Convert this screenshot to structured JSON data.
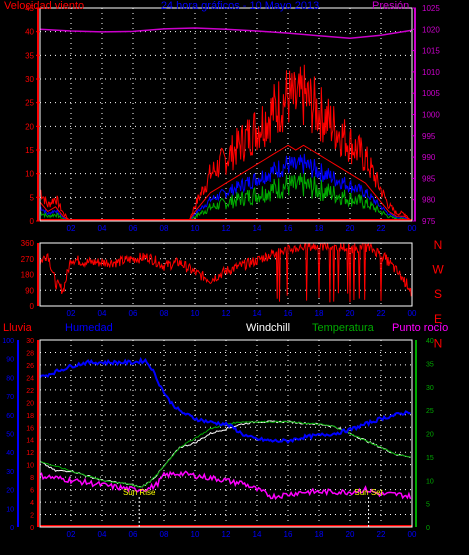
{
  "title": "24 hora gráficos - 10 Mayo 2013",
  "colors": {
    "background": "#000000",
    "grid": "#ffffff",
    "axis": "#ffffff",
    "wind": "#ff0000",
    "gust": "#ff0000",
    "pressure": "#cc00cc",
    "direction": "#ff0000",
    "rain": "#ff0000",
    "humidity": "#0000ff",
    "windchill": "#ffffff",
    "temperature": "#00aa00",
    "dewpoint": "#ff00ff",
    "marker": "#ffff00",
    "title": "#0000ff"
  },
  "chart_data": [
    {
      "type": "line",
      "title": "24 hora gráficos - 10 Mayo 2013",
      "xlabel": "",
      "x_ticks": [
        "02",
        "04",
        "06",
        "08",
        "10",
        "12",
        "14",
        "16",
        "18",
        "20",
        "22",
        "00"
      ],
      "y_left": {
        "label": "Velocidad viento",
        "range": [
          0,
          45
        ],
        "ticks": [
          0,
          5,
          10,
          15,
          20,
          25,
          30,
          35,
          40,
          45
        ]
      },
      "y_right": {
        "label": "Presión",
        "range": [
          975,
          1025
        ],
        "ticks": [
          975,
          980,
          985,
          990,
          995,
          1000,
          1005,
          1010,
          1015,
          1020,
          1025
        ]
      },
      "grid": true,
      "series": [
        {
          "name": "Velocidad viento",
          "axis": "left",
          "x": [
            0,
            0.5,
            1.0,
            1.5,
            2.0,
            3.0,
            4.0,
            5.0,
            6.0,
            7.0,
            8.0,
            9.0,
            9.6,
            10.0,
            10.5,
            11.0,
            11.5,
            12.0,
            12.5,
            13.0,
            13.5,
            14.0,
            14.5,
            15.0,
            15.5,
            16.0,
            16.5,
            17.0,
            17.5,
            18.0,
            18.5,
            19.0,
            19.5,
            20.0,
            20.5,
            21.0,
            21.5,
            22.0,
            22.5,
            23.0,
            23.5,
            24.0
          ],
          "y": [
            4,
            2,
            3,
            1,
            0,
            0,
            0,
            0,
            0,
            0,
            0,
            0,
            0,
            2,
            4,
            6,
            7,
            8,
            9,
            10,
            11,
            12,
            13,
            14,
            15,
            16,
            15,
            16,
            15,
            14,
            13,
            12,
            11,
            10,
            9,
            8,
            6,
            4,
            2,
            1,
            1,
            0
          ]
        },
        {
          "name": "Presión",
          "axis": "right",
          "x": [
            0,
            2,
            4,
            6,
            8,
            10,
            12,
            14,
            16,
            18,
            20,
            22,
            24
          ],
          "y": [
            1020,
            1019.6,
            1019.4,
            1019.5,
            1020.1,
            1020.3,
            1020.0,
            1019.6,
            1019.1,
            1018.5,
            1017.9,
            1018.6,
            1019.8
          ]
        }
      ]
    },
    {
      "type": "scatter",
      "title": "",
      "x_ticks": [
        "02",
        "04",
        "06",
        "08",
        "10",
        "12",
        "14",
        "16",
        "18",
        "20",
        "22",
        "00"
      ],
      "y_left": {
        "label": "",
        "range": [
          0,
          360
        ],
        "ticks": [
          0,
          90,
          180,
          270,
          360
        ]
      },
      "y_right": {
        "label": "",
        "labels": [
          "N",
          "W",
          "S",
          "E",
          "N"
        ]
      },
      "grid": true,
      "series": [
        {
          "name": "Dirección viento",
          "x": [
            0,
            0.5,
            1.0,
            1.5,
            2.0,
            3.0,
            4.0,
            5.0,
            6.0,
            7.0,
            8.0,
            9.0,
            10.0,
            11.0,
            12.0,
            13.0,
            14.0,
            15.0,
            16.0,
            17.0,
            18.0,
            19.0,
            20.0,
            21.0,
            22.0,
            23.0,
            24.0
          ],
          "y": [
            250,
            300,
            130,
            90,
            270,
            250,
            250,
            250,
            270,
            280,
            230,
            250,
            190,
            150,
            200,
            230,
            260,
            300,
            320,
            340,
            340,
            340,
            330,
            340,
            300,
            200,
            90
          ]
        }
      ]
    },
    {
      "type": "line",
      "title": "",
      "x_ticks": [
        "02",
        "04",
        "06",
        "08",
        "10",
        "12",
        "14",
        "16",
        "18",
        "20",
        "22",
        "00"
      ],
      "y_axes": [
        {
          "label": "Lluvia",
          "range": [
            0,
            100
          ],
          "ticks": [
            0,
            10,
            20,
            30,
            40,
            50,
            60,
            70,
            80,
            90,
            100
          ]
        },
        {
          "label": "Humedad",
          "range": [
            0,
            30
          ],
          "ticks": [
            0,
            2,
            4,
            6,
            8,
            10,
            12,
            14,
            16,
            18,
            20,
            22,
            24,
            26,
            28,
            30
          ]
        },
        {
          "label": "Temperatura",
          "range": [
            0,
            40
          ],
          "ticks": [
            0,
            5,
            10,
            15,
            20,
            25,
            30,
            35,
            40
          ]
        }
      ],
      "legend": [
        "Windchill",
        "Temperatura",
        "Punto rocío"
      ],
      "annotations": [
        {
          "text": "Sun Rise",
          "x": 6.4
        },
        {
          "text": "Sun Set",
          "x": 21.2
        }
      ],
      "grid": true,
      "series": [
        {
          "name": "Lluvia",
          "x": [
            0,
            24
          ],
          "y": [
            0,
            0
          ]
        },
        {
          "name": "Humedad",
          "x": [
            0,
            1,
            2,
            3,
            4,
            5,
            6,
            6.8,
            7.2,
            7.8,
            8.3,
            9.0,
            10.0,
            11.0,
            12.0,
            12.5,
            13.0,
            13.5,
            14.0,
            15.0,
            16.0,
            17.0,
            18.0,
            19.0,
            20.0,
            21.0,
            22.0,
            23.0,
            24.0
          ],
          "y": [
            80,
            83,
            86,
            88,
            88,
            88,
            88,
            89,
            85,
            75,
            68,
            62,
            58,
            56,
            55,
            53,
            50,
            48,
            47,
            46,
            46,
            48,
            49,
            50,
            52,
            55,
            58,
            60,
            62
          ]
        },
        {
          "name": "Temperatura",
          "x": [
            0,
            1,
            2,
            3,
            4,
            5,
            6,
            6.5,
            7.0,
            7.5,
            8.0,
            8.5,
            9.0,
            10.0,
            11.0,
            12.0,
            13.0,
            14.0,
            15.0,
            16.0,
            17.0,
            18.0,
            19.0,
            20.0,
            21.0,
            22.0,
            23.0,
            24.0
          ],
          "y": [
            14,
            13,
            12,
            11,
            10,
            9.5,
            9,
            8.5,
            9.5,
            11,
            13,
            15,
            17,
            19,
            21,
            22,
            22.5,
            22.5,
            22.5,
            22.5,
            22.2,
            22,
            21.5,
            20,
            18.5,
            17,
            15.5,
            15
          ]
        },
        {
          "name": "Windchill",
          "x": [
            0,
            1,
            2,
            3,
            4,
            5,
            6,
            6.5,
            7.0,
            7.5,
            8.0,
            8.5,
            9.0,
            10.0,
            11.0,
            12.0,
            13.0,
            14.0,
            15.0,
            16.0,
            17.0,
            18.0,
            19.0,
            20.0,
            21.0,
            22.0,
            23.0,
            24.0
          ],
          "y": [
            14,
            12,
            12,
            11,
            10,
            9.5,
            9,
            8.5,
            9.5,
            11,
            13,
            15,
            17,
            18,
            20,
            21,
            22,
            22.5,
            22.5,
            22.5,
            22.2,
            22,
            21.5,
            20,
            18.5,
            17,
            15.5,
            15
          ]
        },
        {
          "name": "Punto rocío",
          "x": [
            0,
            1,
            2,
            3,
            4,
            5,
            6,
            7.0,
            7.5,
            8.0,
            9.0,
            10.0,
            11.0,
            12.0,
            12.5,
            13.0,
            14.0,
            15.0,
            16.0,
            17.0,
            18.0,
            19.0,
            20.0,
            21.0,
            22.0,
            23.0,
            24.0
          ],
          "y": [
            11,
            10.5,
            10,
            9.5,
            9,
            8.5,
            8,
            8.2,
            9,
            11,
            11.5,
            11,
            10.5,
            10,
            9.5,
            9.5,
            8,
            6.5,
            7,
            7.5,
            7.5,
            7.5,
            7.5,
            8,
            7,
            7,
            6.5
          ]
        }
      ]
    }
  ]
}
